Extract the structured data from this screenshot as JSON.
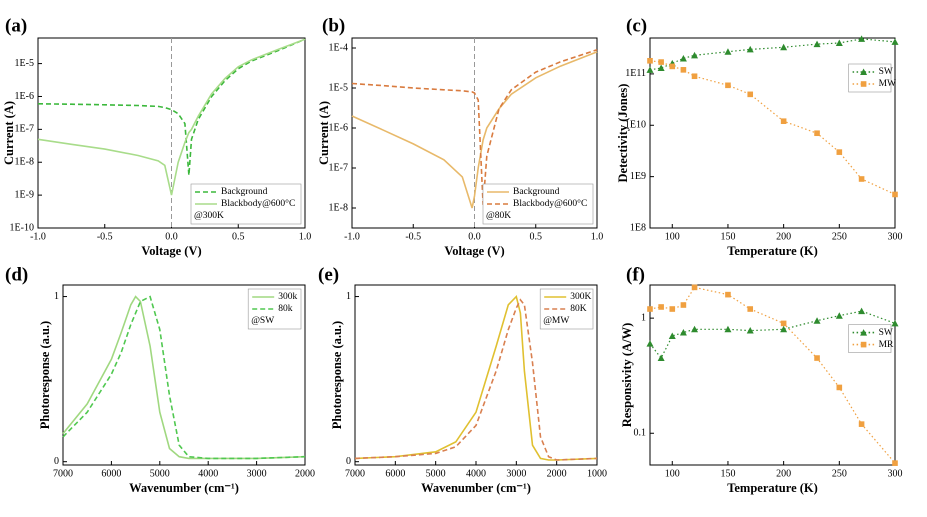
{
  "chart_data": [
    {
      "type": "line",
      "title": "(a)",
      "xlabel": "Voltage (V)",
      "ylabel": "Current (A)",
      "log_y": true,
      "vline": 0,
      "legend": "lower right",
      "annotation": "@300K",
      "x": [
        -1,
        -0.75,
        -0.5,
        -0.25,
        -0.1,
        -0.05,
        0,
        0.05,
        0.1,
        0.13,
        0.15,
        0.2,
        0.3,
        0.4,
        0.5,
        0.6,
        0.8,
        1.0
      ],
      "series": [
        {
          "name": "Background",
          "color": "#3cb83c",
          "dash": true,
          "values": [
            6e-07,
            5.8e-07,
            5.6e-07,
            5.3e-07,
            5e-07,
            4.6e-07,
            4e-07,
            3e-07,
            1.5e-07,
            4e-09,
            5e-08,
            2e-07,
            1e-06,
            3e-06,
            7e-06,
            1.2e-05,
            2.5e-05,
            5.5e-05
          ]
        },
        {
          "name": "Blackbody@600°C",
          "color": "#a8dc8a",
          "dash": false,
          "values": [
            5e-08,
            3.5e-08,
            2.5e-08,
            1.6e-08,
            1.1e-08,
            8e-09,
            1e-09,
            1e-08,
            4e-08,
            8e-08,
            1e-07,
            2.5e-07,
            1.2e-06,
            3.5e-06,
            8e-06,
            1.3e-05,
            2.7e-05,
            5.5e-05
          ]
        }
      ],
      "xlim": [
        -1,
        1
      ],
      "xticks": [
        {
          "value": -1,
          "label": "-1.0"
        },
        -0.5,
        {
          "value": 0,
          "label": "0.0"
        },
        0.5,
        {
          "value": 1,
          "label": "1.0"
        }
      ],
      "ylim": [
        1e-10,
        6e-05
      ],
      "yticks": [
        {
          "value": 1e-10,
          "label": "1E-10"
        },
        {
          "value": 1e-09,
          "label": "1E-9"
        },
        {
          "value": 1e-08,
          "label": "1E-8"
        },
        {
          "value": 1e-07,
          "label": "1E-7"
        },
        {
          "value": 1e-06,
          "label": "1E-6"
        },
        {
          "value": 1e-05,
          "label": "1E-5"
        }
      ]
    },
    {
      "type": "line",
      "title": "(b)",
      "xlabel": "Voltage (V)",
      "ylabel": "Current (A)",
      "log_y": true,
      "vline": 0,
      "legend": "lower right",
      "annotation": "@80K",
      "x": [
        -1,
        -0.75,
        -0.5,
        -0.25,
        -0.1,
        -0.02,
        0,
        0.03,
        0.07,
        0.1,
        0.2,
        0.3,
        0.5,
        0.7,
        1.0
      ],
      "series": [
        {
          "name": "Background",
          "color": "#e8b96a",
          "dash": false,
          "values": [
            2e-06,
            9e-07,
            4e-07,
            1.6e-07,
            6e-08,
            1e-08,
            2e-08,
            1e-07,
            5e-07,
            1e-06,
            3e-06,
            7e-06,
            1.8e-05,
            3.5e-05,
            8e-05
          ]
        },
        {
          "name": "Blackbody@600°C",
          "color": "#d97b3f",
          "dash": true,
          "values": [
            1.3e-05,
            1.15e-05,
            1e-05,
            9e-06,
            8.5e-06,
            8e-06,
            7.5e-06,
            5e-06,
            1.2e-08,
            2e-07,
            3e-06,
            9e-06,
            2.5e-05,
            4.5e-05,
            9e-05
          ]
        }
      ],
      "xlim": [
        -1,
        1
      ],
      "xticks": [
        {
          "value": -1,
          "label": "-1.0"
        },
        -0.5,
        {
          "value": 0,
          "label": "0.0"
        },
        0.5,
        {
          "value": 1,
          "label": "1.0"
        }
      ],
      "ylim": [
        3.16e-09,
        0.000178
      ],
      "yticks": [
        {
          "value": 1e-08,
          "label": "1E-8"
        },
        {
          "value": 1e-07,
          "label": "1E-7"
        },
        {
          "value": 1e-06,
          "label": "1E-6"
        },
        {
          "value": 1e-05,
          "label": "1E-5"
        },
        {
          "value": 0.0001,
          "label": "1E-4"
        }
      ]
    },
    {
      "type": "line",
      "title": "(c)",
      "xlabel": "Temperature (K)",
      "ylabel": "Detectivity (Jones)",
      "log_y": true,
      "legend": "upper right",
      "x": [
        80,
        90,
        100,
        110,
        120,
        150,
        170,
        200,
        230,
        250,
        270,
        300
      ],
      "series": [
        {
          "name": "SW",
          "color": "#2e8b2e",
          "marker": "triangle",
          "values": [
            120000000000.0,
            130000000000.0,
            160000000000.0,
            200000000000.0,
            230000000000.0,
            270000000000.0,
            300000000000.0,
            330000000000.0,
            380000000000.0,
            400000000000.0,
            480000000000.0,
            420000000000.0
          ]
        },
        {
          "name": "MW",
          "color": "#f0a040",
          "marker": "square",
          "values": [
            180000000000.0,
            170000000000.0,
            140000000000.0,
            120000000000.0,
            90000000000.0,
            60000000000.0,
            40000000000.0,
            12000000000.0,
            7000000000.0,
            3000000000.0,
            900000000.0,
            450000000.0
          ]
        }
      ],
      "xlim": [
        80,
        300
      ],
      "xticks": [
        100,
        150,
        200,
        250,
        300
      ],
      "ylim": [
        100000000.0,
        500000000000.0
      ],
      "yticks": [
        {
          "value": 100000000.0,
          "label": "1E8"
        },
        {
          "value": 1000000000.0,
          "label": "1E9"
        },
        {
          "value": 10000000000.0,
          "label": "1E10"
        },
        {
          "value": 100000000000.0,
          "label": "1E11"
        }
      ]
    },
    {
      "type": "line",
      "title": "(d)",
      "xlabel": "Wavenumber (cm⁻¹)",
      "ylabel": "Photoresponse (a.u.)",
      "legend": "upper right",
      "annotation": "@SW",
      "x": [
        7000,
        6500,
        6000,
        5800,
        5600,
        5500,
        5400,
        5200,
        5000,
        4800,
        4600,
        4400,
        4000,
        3000,
        2000
      ],
      "series": [
        {
          "name": "300k",
          "color": "#a0d880",
          "dash": false,
          "values": [
            0.17,
            0.35,
            0.62,
            0.78,
            0.95,
            1.0,
            0.97,
            0.7,
            0.3,
            0.08,
            0.03,
            0.02,
            0.02,
            0.02,
            0.03
          ]
        },
        {
          "name": "80k",
          "color": "#50c850",
          "dash": true,
          "values": [
            0.15,
            0.3,
            0.53,
            0.66,
            0.83,
            0.9,
            0.97,
            1.0,
            0.8,
            0.4,
            0.1,
            0.03,
            0.02,
            0.02,
            0.03
          ]
        }
      ],
      "xlim": [
        7000,
        2000
      ],
      "xticks": [
        7000,
        6000,
        5000,
        4000,
        3000,
        2000
      ],
      "ylim": [
        -0.02,
        1.07
      ],
      "yticks": [
        0,
        1
      ]
    },
    {
      "type": "line",
      "title": "(e)",
      "xlabel": "Wavenumber (cm⁻¹)",
      "ylabel": "Photoresponse (a.u.)",
      "legend": "upper right",
      "annotation": "@MW",
      "x": [
        7000,
        6000,
        5000,
        4500,
        4000,
        3500,
        3200,
        3000,
        2900,
        2800,
        2600,
        2400,
        2200,
        2000,
        1000
      ],
      "series": [
        {
          "name": "300K",
          "color": "#e0c030",
          "dash": false,
          "values": [
            0.02,
            0.03,
            0.06,
            0.12,
            0.3,
            0.7,
            0.95,
            1.0,
            0.9,
            0.55,
            0.1,
            0.02,
            0.01,
            0.01,
            0.02
          ]
        },
        {
          "name": "80K",
          "color": "#d98050",
          "dash": true,
          "values": [
            0.02,
            0.03,
            0.05,
            0.09,
            0.22,
            0.55,
            0.8,
            0.93,
            0.98,
            0.95,
            0.6,
            0.15,
            0.03,
            0.01,
            0.02
          ]
        }
      ],
      "xlim": [
        7000,
        1000
      ],
      "xticks": [
        7000,
        6000,
        5000,
        4000,
        3000,
        2000,
        1000
      ],
      "ylim": [
        -0.02,
        1.07
      ],
      "yticks": [
        0,
        1
      ]
    },
    {
      "type": "line",
      "title": "(f)",
      "xlabel": "Temperature (K)",
      "ylabel": "Responsivity (A/W)",
      "log_y": true,
      "legend": "center right",
      "x": [
        80,
        90,
        100,
        110,
        120,
        150,
        170,
        200,
        230,
        250,
        270,
        300
      ],
      "series": [
        {
          "name": "SW",
          "color": "#2e8b2e",
          "marker": "triangle",
          "values": [
            0.6,
            0.45,
            0.7,
            0.75,
            0.8,
            0.8,
            0.78,
            0.8,
            0.95,
            1.05,
            1.15,
            0.9
          ]
        },
        {
          "name": "MR",
          "color": "#f0a040",
          "marker": "square",
          "values": [
            1.2,
            1.25,
            1.2,
            1.3,
            1.85,
            1.6,
            1.2,
            0.9,
            0.45,
            0.25,
            0.12,
            0.055
          ]
        }
      ],
      "xlim": [
        80,
        300
      ],
      "xticks": [
        100,
        150,
        200,
        250,
        300
      ],
      "ylim": [
        0.053,
        1.94
      ],
      "yticks": [
        0.1,
        1
      ]
    }
  ]
}
